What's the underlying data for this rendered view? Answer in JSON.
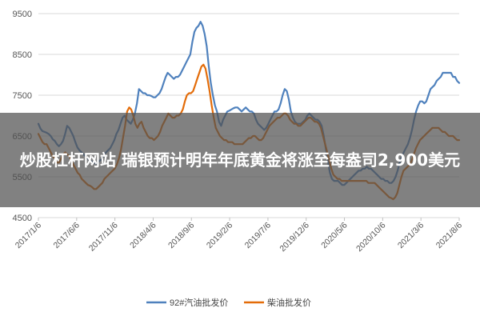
{
  "overlay": {
    "headline": "炒股杠杆网站 瑞银预计明年年底黄金将涨至每盎司2,900美元"
  },
  "chart_data": {
    "type": "line",
    "title": "",
    "xlabel": "",
    "ylabel": "",
    "ylim": [
      4500,
      9500
    ],
    "yticks": [
      9500,
      8500,
      7500,
      6500,
      5500,
      4500
    ],
    "ytick_labels": [
      "9500",
      "8500",
      "7500",
      "6500",
      "5500",
      "4500"
    ],
    "x_tick_labels": [
      "2017/1/6",
      "2017/6/6",
      "2017/11/6",
      "2018/4/6",
      "2018/9/6",
      "2019/2/6",
      "2019/7/6",
      "2019/12/6",
      "2020/5/6",
      "2020/10/6",
      "2021/3/6",
      "2021/8/6"
    ],
    "grid": "horizontal",
    "legend_position": "bottom",
    "series": [
      {
        "name": "92#汽油批发价",
        "color": "#4f81bd",
        "values": [
          6800,
          6680,
          6620,
          6600,
          6580,
          6550,
          6500,
          6420,
          6380,
          6300,
          6250,
          6300,
          6380,
          6550,
          6750,
          6700,
          6600,
          6500,
          6350,
          6220,
          6150,
          6100,
          6050,
          6000,
          5950,
          5900,
          5880,
          5850,
          5820,
          5850,
          5900,
          5950,
          6050,
          6100,
          6150,
          6200,
          6300,
          6400,
          6550,
          6650,
          6800,
          6950,
          7000,
          6900,
          6850,
          6800,
          6900,
          7050,
          7300,
          7650,
          7600,
          7550,
          7550,
          7500,
          7500,
          7480,
          7450,
          7450,
          7500,
          7550,
          7650,
          7800,
          7950,
          8050,
          8000,
          7950,
          7900,
          7950,
          7950,
          8000,
          8100,
          8200,
          8300,
          8400,
          8500,
          8800,
          9050,
          9150,
          9200,
          9300,
          9200,
          9000,
          8700,
          8200,
          7800,
          7500,
          7250,
          7100,
          6850,
          6750,
          6900,
          7000,
          7100,
          7120,
          7150,
          7180,
          7200,
          7200,
          7150,
          7100,
          7150,
          7200,
          7150,
          7100,
          7100,
          7050,
          6900,
          6800,
          6750,
          6700,
          6650,
          6700,
          6800,
          6900,
          7000,
          7100,
          7100,
          7150,
          7300,
          7500,
          7650,
          7600,
          7400,
          7100,
          6950,
          6850,
          6800,
          6800,
          6800,
          6850,
          6900,
          7000,
          7050,
          7000,
          6950,
          6900,
          6900,
          6850,
          6750,
          6500,
          6200,
          5900,
          5600,
          5450,
          5400,
          5400,
          5400,
          5350,
          5300,
          5300,
          5350,
          5400,
          5450,
          5500,
          5550,
          5600,
          5650,
          5650,
          5700,
          5700,
          5750,
          5700,
          5700,
          5650,
          5600,
          5550,
          5500,
          5450,
          5450,
          5400,
          5400,
          5350,
          5350,
          5400,
          5500,
          5650,
          5850,
          6000,
          6100,
          6200,
          6300,
          6450,
          6650,
          6900,
          7100,
          7250,
          7350,
          7350,
          7300,
          7350,
          7500,
          7650,
          7700,
          7750,
          7850,
          7900,
          7950,
          8050,
          8050,
          8050,
          8050,
          8050,
          7950,
          7950,
          7850,
          7800
        ]
      },
      {
        "name": "柴油批发价",
        "color": "#e36c09",
        "values": [
          6550,
          6450,
          6350,
          6300,
          6300,
          6200,
          6100,
          6000,
          5950,
          5850,
          5850,
          5950,
          6050,
          6100,
          6050,
          6000,
          5900,
          5800,
          5700,
          5600,
          5550,
          5450,
          5400,
          5350,
          5300,
          5280,
          5250,
          5200,
          5200,
          5250,
          5300,
          5350,
          5450,
          5500,
          5550,
          5600,
          5650,
          5700,
          5800,
          5950,
          6150,
          6450,
          6750,
          7100,
          7200,
          7150,
          7000,
          6800,
          6700,
          6800,
          6850,
          6700,
          6600,
          6500,
          6450,
          6450,
          6400,
          6450,
          6500,
          6600,
          6750,
          6850,
          6950,
          7050,
          7000,
          6950,
          6950,
          7000,
          7000,
          7050,
          7150,
          7350,
          7500,
          7550,
          7550,
          7600,
          7750,
          7900,
          8050,
          8200,
          8250,
          8150,
          7900,
          7600,
          7250,
          6950,
          6700,
          6600,
          6500,
          6450,
          6400,
          6400,
          6350,
          6350,
          6350,
          6300,
          6300,
          6300,
          6300,
          6300,
          6350,
          6400,
          6450,
          6450,
          6500,
          6500,
          6450,
          6400,
          6400,
          6450,
          6550,
          6650,
          6750,
          6800,
          6850,
          6900,
          6950,
          6950,
          7000,
          7050,
          7050,
          7000,
          6900,
          6850,
          6800,
          6800,
          6750,
          6750,
          6800,
          6850,
          6900,
          6950,
          6950,
          6900,
          6850,
          6850,
          6800,
          6700,
          6500,
          6300,
          6100,
          5900,
          5700,
          5550,
          5500,
          5450,
          5450,
          5400,
          5400,
          5400,
          5400,
          5400,
          5400,
          5400,
          5400,
          5400,
          5400,
          5400,
          5400,
          5400,
          5350,
          5350,
          5350,
          5350,
          5300,
          5250,
          5200,
          5150,
          5100,
          5050,
          5000,
          4980,
          4950,
          5000,
          5100,
          5300,
          5500,
          5650,
          5700,
          5750,
          5800,
          5900,
          6050,
          6200,
          6300,
          6400,
          6450,
          6500,
          6550,
          6600,
          6650,
          6700,
          6700,
          6700,
          6700,
          6650,
          6600,
          6600,
          6550,
          6500,
          6500,
          6500,
          6450,
          6400,
          6400
        ]
      }
    ]
  }
}
